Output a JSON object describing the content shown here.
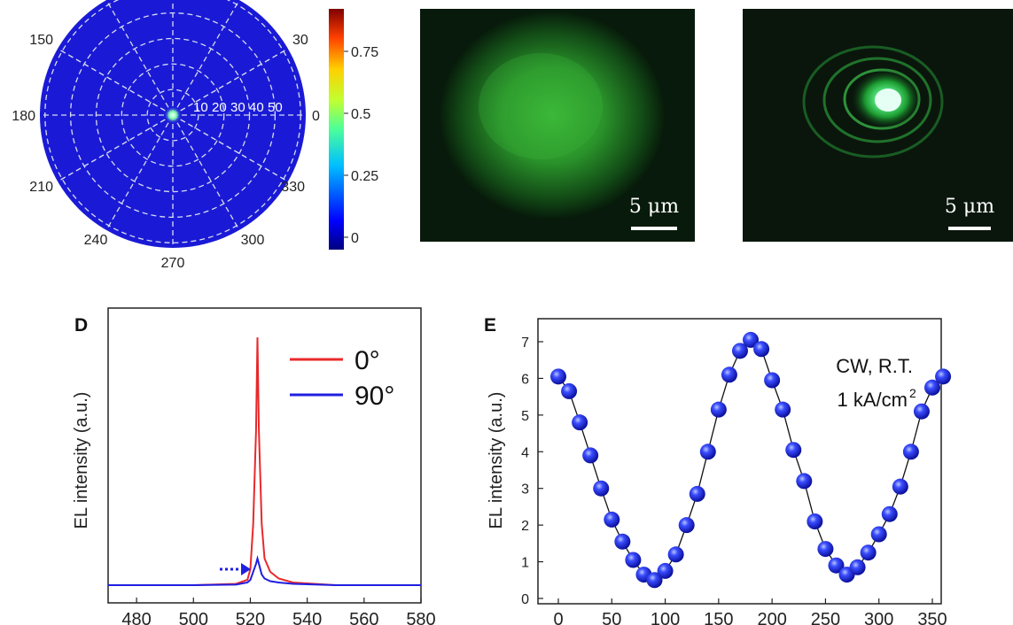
{
  "polar": {
    "angle_labels": [
      "0",
      "30",
      "150",
      "180",
      "210",
      "240",
      "270",
      "300",
      "330"
    ],
    "radial_labels": [
      "10",
      "20",
      "30",
      "40",
      "50"
    ],
    "colorbar_ticks": [
      "0",
      "0.25",
      "0.5",
      "0.75"
    ],
    "colors": {
      "background": "#1a1ad6",
      "grid": "#d8dcf0"
    }
  },
  "images": {
    "left": {
      "scale_text": "5 μm"
    },
    "right": {
      "scale_text": "5 μm"
    }
  },
  "panel_d": {
    "letter": "D",
    "ylabel": "EL intensity (a.u.)",
    "x_ticks": [
      "480",
      "500",
      "520",
      "540",
      "560",
      "580"
    ],
    "legend": [
      {
        "label": "0°",
        "color": "#e8292b"
      },
      {
        "label": "90°",
        "color": "#1f1fe0"
      }
    ]
  },
  "panel_e": {
    "letter": "E",
    "ylabel": "EL intensity (a.u.)",
    "x_ticks": [
      "0",
      "50",
      "100",
      "150",
      "200",
      "250",
      "300",
      "350"
    ],
    "y_ticks": [
      "0",
      "1",
      "2",
      "3",
      "4",
      "5",
      "6",
      "7"
    ],
    "annotation_line1": "CW, R.T.",
    "annotation_line2": "1 kA/cm",
    "annotation_sup": "2"
  },
  "chart_data": [
    {
      "type": "heatmap",
      "subtype": "polar",
      "angular_ticks_deg": [
        0,
        30,
        150,
        180,
        210,
        240,
        270,
        300,
        330
      ],
      "radial_ticks": [
        10,
        20,
        30,
        40,
        50
      ],
      "colorbar": {
        "range": [
          0,
          0.9
        ],
        "ticks": [
          0,
          0.25,
          0.5,
          0.75
        ]
      },
      "note": "intensity concentrated at center"
    },
    {
      "type": "line",
      "panel": "D",
      "xlim": [
        470,
        580
      ],
      "x_ticks": [
        480,
        500,
        520,
        540,
        560,
        580
      ],
      "ylabel": "EL intensity (a.u.)",
      "series": [
        {
          "name": "0°",
          "color": "#e8292b",
          "x": [
            470,
            500,
            515,
            519,
            520,
            521,
            522,
            522.5,
            523,
            524,
            525,
            527,
            530,
            535,
            550,
            580
          ],
          "y": [
            0.02,
            0.02,
            0.025,
            0.04,
            0.08,
            0.25,
            0.6,
            0.95,
            0.6,
            0.25,
            0.12,
            0.07,
            0.045,
            0.03,
            0.02,
            0.02
          ]
        },
        {
          "name": "90°",
          "color": "#1f1fe0",
          "x": [
            470,
            500,
            515,
            519,
            520,
            521,
            522,
            522.5,
            523,
            524,
            525,
            527,
            530,
            535,
            550,
            580
          ],
          "y": [
            0.02,
            0.02,
            0.022,
            0.03,
            0.04,
            0.07,
            0.1,
            0.12,
            0.1,
            0.06,
            0.045,
            0.035,
            0.03,
            0.025,
            0.02,
            0.02
          ]
        }
      ]
    },
    {
      "type": "scatter",
      "panel": "E",
      "xlim": [
        -10,
        365
      ],
      "ylim": [
        -0.2,
        7.5
      ],
      "x_ticks": [
        0,
        50,
        100,
        150,
        200,
        250,
        300,
        350
      ],
      "y_ticks": [
        0,
        1,
        2,
        3,
        4,
        5,
        6,
        7
      ],
      "ylabel": "EL intensity (a.u.)",
      "x": [
        0,
        10,
        20,
        30,
        40,
        50,
        60,
        70,
        80,
        90,
        100,
        110,
        120,
        130,
        140,
        150,
        160,
        170,
        180,
        190,
        200,
        210,
        220,
        230,
        240,
        250,
        260,
        270,
        280,
        290,
        300,
        310,
        320,
        330,
        340,
        350,
        360
      ],
      "y": [
        6.05,
        5.65,
        4.8,
        3.9,
        3.0,
        2.15,
        1.55,
        1.05,
        0.65,
        0.5,
        0.75,
        1.2,
        2.0,
        2.85,
        4.0,
        5.15,
        6.1,
        6.75,
        7.05,
        6.8,
        5.95,
        5.15,
        4.05,
        3.2,
        2.1,
        1.35,
        0.9,
        0.65,
        0.85,
        1.25,
        1.75,
        2.3,
        3.05,
        4.0,
        5.1,
        5.75,
        6.05
      ],
      "annotations": [
        "CW, R.T.",
        "1 kA/cm2"
      ]
    }
  ]
}
